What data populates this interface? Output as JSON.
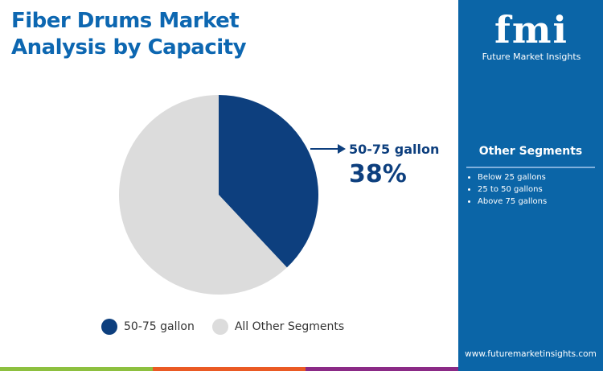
{
  "title_line1": "Fiber Drums Market",
  "title_line2": "Analysis by Capacity",
  "chart_data": {
    "type": "pie",
    "slices": [
      {
        "label": "50-75 gallon",
        "value": 38,
        "color": "#0d3f7e"
      },
      {
        "label": "All Other Segments",
        "value": 62,
        "color": "#dcdcdc"
      }
    ],
    "callout": {
      "label": "50-75 gallon",
      "value": "38%"
    },
    "legend": [
      "50-75 gallon",
      "All Other Segments"
    ],
    "legend_placement": "bottom"
  },
  "side_panel": {
    "logo_text": "fmi",
    "brand": "Future Market Insights",
    "other_title": "Other Segments",
    "other_items": [
      "Below 25 gallons",
      "25 to 50 gallons",
      "Above 75 gallons"
    ],
    "url": "www.futuremarketinsights.com",
    "color": "#0b65a7"
  },
  "bottom_bar_colors": [
    "#8dc03f",
    "#ea5a24",
    "#8b2a86"
  ]
}
